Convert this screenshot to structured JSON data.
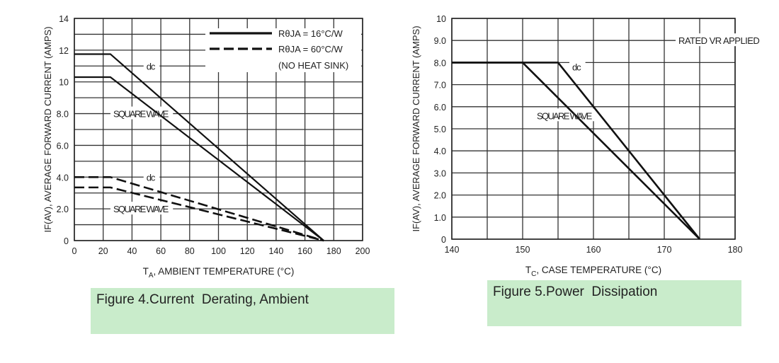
{
  "chart_data": [
    {
      "type": "line",
      "title": "Figure 4.Current  Derating, Ambient",
      "xlabel_main": "T",
      "xlabel_sub": "A",
      "xlabel_rest": ", AMBIENT TEMPERATURE (°C)",
      "ylabel": "IF(AV), AVERAGE FORWARD CURRENT (AMPS)",
      "xlim": [
        0,
        200
      ],
      "ylim": [
        0,
        14
      ],
      "xticks": [
        0,
        20,
        40,
        60,
        80,
        100,
        120,
        140,
        160,
        180,
        200
      ],
      "yticks": [
        {
          "v": 0,
          "l": "0"
        },
        {
          "v": 2,
          "l": "2.0"
        },
        {
          "v": 4,
          "l": "4.0"
        },
        {
          "v": 6,
          "l": "6.0"
        },
        {
          "v": 8,
          "l": "8.0"
        },
        {
          "v": 10,
          "l": "10"
        },
        {
          "v": 12,
          "l": "12"
        },
        {
          "v": 14,
          "l": "14"
        }
      ],
      "grid": true,
      "legend": [
        {
          "label": "RθJA = 16°C/W",
          "style": "solid"
        },
        {
          "label": "RθJA = 60°C/W",
          "style": "dashed"
        },
        {
          "label": "(NO HEAT SINK)",
          "style": "none"
        }
      ],
      "legend_position": "top-right",
      "series": [
        {
          "name": "dc (16°C/W)",
          "style": "solid",
          "x": [
            0,
            25,
            173
          ],
          "y": [
            11.75,
            11.75,
            0
          ]
        },
        {
          "name": "square wave (16°C/W)",
          "style": "solid",
          "x": [
            0,
            25,
            173
          ],
          "y": [
            10.3,
            10.3,
            0
          ]
        },
        {
          "name": "dc (60°C/W)",
          "style": "dashed",
          "x": [
            0,
            25,
            173
          ],
          "y": [
            4.0,
            4.0,
            0
          ]
        },
        {
          "name": "square wave (60°C/W)",
          "style": "dashed",
          "x": [
            0,
            25,
            173
          ],
          "y": [
            3.35,
            3.35,
            0
          ]
        }
      ],
      "annotations": [
        {
          "text": "dc",
          "x": 50,
          "y": 11
        },
        {
          "text": "SQUARE WAVE",
          "x": 27,
          "y": 8
        },
        {
          "text": "dc",
          "x": 50,
          "y": 4
        },
        {
          "text": "SQUARE WAVE",
          "x": 27,
          "y": 2
        }
      ]
    },
    {
      "type": "line",
      "title": "Figure 5.Power  Dissipation",
      "xlabel_main": "T",
      "xlabel_sub": "C",
      "xlabel_rest": ", CASE TEMPERATURE (°C)",
      "ylabel": "IF(AV), AVERAGE FORWARD CURRENT (AMPS)",
      "xlim": [
        140,
        180
      ],
      "ylim": [
        0,
        10
      ],
      "xticks": [
        140,
        150,
        160,
        170,
        180
      ],
      "yticks": [
        {
          "v": 0,
          "l": "0"
        },
        {
          "v": 1,
          "l": "1.0"
        },
        {
          "v": 2,
          "l": "2.0"
        },
        {
          "v": 3,
          "l": "3.0"
        },
        {
          "v": 4,
          "l": "4.0"
        },
        {
          "v": 5,
          "l": "5.0"
        },
        {
          "v": 6,
          "l": "6.0"
        },
        {
          "v": 7,
          "l": "7.0"
        },
        {
          "v": 8,
          "l": "8.0"
        },
        {
          "v": 9,
          "l": "9.0"
        },
        {
          "v": 10,
          "l": "10"
        }
      ],
      "grid": true,
      "series": [
        {
          "name": "dc",
          "style": "solid",
          "x": [
            140,
            155,
            175
          ],
          "y": [
            8,
            8,
            0
          ]
        },
        {
          "name": "square wave",
          "style": "solid",
          "x": [
            140,
            150,
            175
          ],
          "y": [
            8,
            8,
            0
          ]
        }
      ],
      "annotations": [
        {
          "text": "RATED VR APPLIED",
          "x": 172,
          "y": 9
        },
        {
          "text": "dc",
          "x": 157,
          "y": 7.8
        },
        {
          "text": "SQUARE WAVE",
          "x": 152,
          "y": 5.6
        }
      ]
    }
  ]
}
